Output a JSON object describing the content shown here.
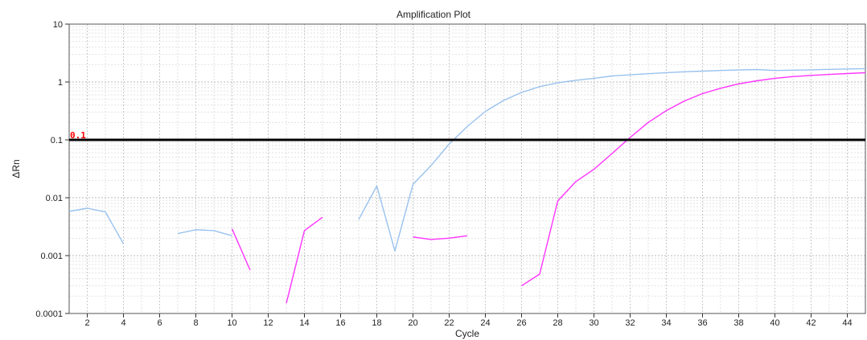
{
  "chart_data": {
    "type": "line",
    "title": "Amplification Plot",
    "xlabel": "Cycle",
    "ylabel": "ΔRn",
    "yscale": "log",
    "xlim": [
      1,
      45
    ],
    "ylim": [
      0.0001,
      10
    ],
    "grid": true,
    "x_ticks": [
      2,
      4,
      6,
      8,
      10,
      12,
      14,
      16,
      18,
      20,
      22,
      24,
      26,
      28,
      30,
      32,
      34,
      36,
      38,
      40,
      42,
      44
    ],
    "y_ticks": [
      {
        "value": 0.0001,
        "label": "0.0001"
      },
      {
        "value": 0.001,
        "label": "0.001"
      },
      {
        "value": 0.01,
        "label": "0.01"
      },
      {
        "value": 0.1,
        "label": "0.1"
      },
      {
        "value": 1,
        "label": "1"
      },
      {
        "value": 10,
        "label": "10"
      }
    ],
    "threshold": {
      "value": 0.1,
      "label": "0.1",
      "color": "#000000",
      "label_color": "#ff0000"
    },
    "series": [
      {
        "color": "#99c2ee",
        "segments": [
          [
            [
              1,
              0.0058
            ],
            [
              2,
              0.0066
            ],
            [
              3,
              0.0057
            ],
            [
              4,
              0.0016
            ]
          ],
          [
            [
              7,
              0.0024
            ],
            [
              8,
              0.0028
            ],
            [
              9,
              0.0027
            ],
            [
              10,
              0.0022
            ]
          ],
          [
            [
              17,
              0.0042
            ],
            [
              18,
              0.016
            ],
            [
              19,
              0.0012
            ],
            [
              20,
              0.017
            ],
            [
              21,
              0.036
            ],
            [
              22,
              0.085
            ],
            [
              23,
              0.17
            ],
            [
              24,
              0.31
            ],
            [
              25,
              0.48
            ],
            [
              26,
              0.66
            ],
            [
              27,
              0.83
            ],
            [
              28,
              0.97
            ],
            [
              29,
              1.07
            ],
            [
              30,
              1.16
            ],
            [
              31,
              1.27
            ],
            [
              32,
              1.33
            ],
            [
              33,
              1.39
            ],
            [
              34,
              1.45
            ],
            [
              35,
              1.5
            ],
            [
              36,
              1.54
            ],
            [
              37,
              1.58
            ],
            [
              38,
              1.61
            ],
            [
              39,
              1.64
            ],
            [
              40,
              1.58
            ],
            [
              41,
              1.6
            ],
            [
              42,
              1.62
            ],
            [
              43,
              1.65
            ],
            [
              44,
              1.68
            ],
            [
              45,
              1.7
            ]
          ]
        ]
      },
      {
        "color": "#ff33ff",
        "segments": [
          [
            [
              10,
              0.0029
            ],
            [
              11,
              0.00056
            ]
          ],
          [
            [
              13,
              0.00015
            ],
            [
              14,
              0.0027
            ],
            [
              15,
              0.0046
            ]
          ],
          [
            [
              20,
              0.0021
            ],
            [
              21,
              0.0019
            ],
            [
              22,
              0.002
            ],
            [
              23,
              0.0022
            ]
          ],
          [
            [
              26,
              0.0003
            ],
            [
              27,
              0.00048
            ],
            [
              28,
              0.0088
            ],
            [
              29,
              0.019
            ],
            [
              30,
              0.031
            ],
            [
              31,
              0.058
            ],
            [
              32,
              0.11
            ],
            [
              33,
              0.2
            ],
            [
              34,
              0.32
            ],
            [
              35,
              0.47
            ],
            [
              36,
              0.63
            ],
            [
              37,
              0.78
            ],
            [
              38,
              0.93
            ],
            [
              39,
              1.05
            ],
            [
              40,
              1.16
            ],
            [
              41,
              1.24
            ],
            [
              42,
              1.3
            ],
            [
              43,
              1.35
            ],
            [
              44,
              1.4
            ],
            [
              45,
              1.45
            ]
          ]
        ]
      }
    ]
  }
}
